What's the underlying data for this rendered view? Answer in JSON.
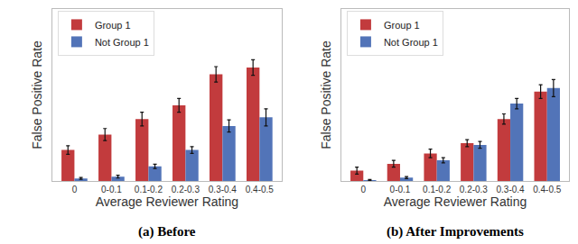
{
  "chart_data": [
    {
      "type": "bar",
      "title": "(a) Before",
      "x_label": "Average Reviewer Rating",
      "y_label": "False Positive Rate",
      "categories": [
        "0",
        "0-0.1",
        "0.1-0.2",
        "0.2-0.3",
        "0.3-0.4",
        "0.4-0.5"
      ],
      "series": [
        {
          "name": "Group 1",
          "color": "#c23b3d",
          "values": [
            0.18,
            0.27,
            0.36,
            0.44,
            0.62,
            0.66
          ],
          "errors": [
            0.025,
            0.035,
            0.04,
            0.04,
            0.045,
            0.045
          ]
        },
        {
          "name": "Not Group 1",
          "color": "#5274b8",
          "values": [
            0.015,
            0.025,
            0.085,
            0.18,
            0.32,
            0.37
          ],
          "errors": [
            0.005,
            0.008,
            0.012,
            0.02,
            0.035,
            0.05
          ]
        }
      ],
      "ylim": [
        0,
        1
      ],
      "tick_labels": "x",
      "legend": "upper left",
      "grid": false
    },
    {
      "type": "bar",
      "title": "(b) After Improvements",
      "x_label": "Average Reviewer Rating",
      "y_label": "False Positive Rate",
      "categories": [
        "0",
        "0-0.1",
        "0.1-0.2",
        "0.2-0.3",
        "0.3-0.4",
        "0.4-0.5"
      ],
      "series": [
        {
          "name": "Group 1",
          "color": "#c23b3d",
          "values": [
            0.06,
            0.1,
            0.16,
            0.22,
            0.36,
            0.52
          ],
          "errors": [
            0.02,
            0.02,
            0.025,
            0.02,
            0.03,
            0.04
          ]
        },
        {
          "name": "Not Group 1",
          "color": "#5274b8",
          "values": [
            0.005,
            0.02,
            0.12,
            0.21,
            0.45,
            0.54
          ],
          "errors": [
            0.003,
            0.006,
            0.015,
            0.02,
            0.03,
            0.05
          ]
        }
      ],
      "ylim": [
        0,
        1
      ],
      "tick_labels": "x",
      "legend": "upper left",
      "grid": false
    }
  ]
}
